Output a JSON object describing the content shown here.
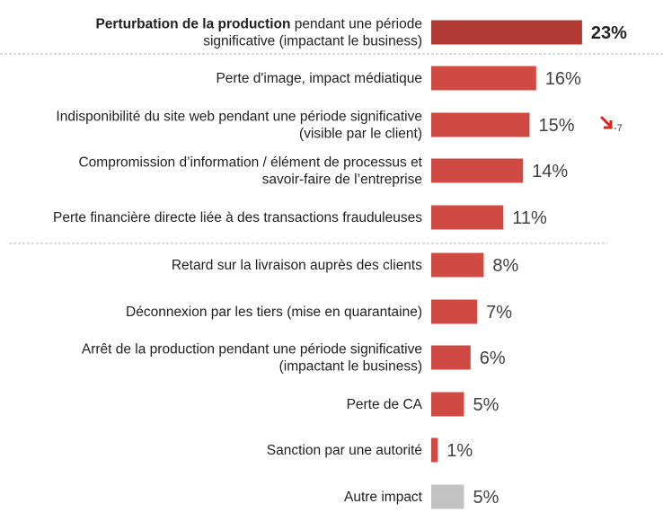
{
  "chart_data": {
    "type": "bar",
    "orientation": "horizontal",
    "unit": "%",
    "xlim": [
      0,
      25
    ],
    "categories": [
      [
        "Perturbation de la production pendant une période",
        "significative (impactant le business)"
      ],
      [
        "Perte d'image, impact médiatique"
      ],
      [
        "Indisponibilité du site web pendant une période significative",
        "(visible par le client)"
      ],
      [
        "Compromission d’information / élément de processus et",
        "savoir-faire de l’entreprise"
      ],
      [
        "Perte financière directe liée à des transactions frauduleuses"
      ],
      [
        "Retard sur la livraison auprès des clients"
      ],
      [
        "Déconnexion par les tiers (mise en quarantaine)"
      ],
      [
        "Arrêt de la production pendant une période significative",
        "(impactant le business)"
      ],
      [
        "Perte de CA"
      ],
      [
        "Sanction par une autorité"
      ],
      [
        "Autre impact"
      ]
    ],
    "bold_prefix": "Perturbation de la production",
    "values": [
      23,
      16,
      15,
      14,
      11,
      8,
      7,
      6,
      5,
      1,
      5
    ],
    "value_labels": [
      "23%",
      "16%",
      "15%",
      "14%",
      "11%",
      "8%",
      "7%",
      "6%",
      "5%",
      "1%",
      "5%"
    ],
    "bar_colors": [
      "#b23a34",
      "#d04a44",
      "#d04a44",
      "#d04a44",
      "#d04a44",
      "#d04a44",
      "#d04a44",
      "#d04a44",
      "#d04a44",
      "#d04a44",
      "#c3c3c3"
    ],
    "annotations": [
      {
        "bar_index": 2,
        "icon": "arrow-down-right-icon",
        "text": "-7",
        "color": "#d9261c"
      }
    ],
    "separators_after": [
      0,
      4
    ]
  }
}
